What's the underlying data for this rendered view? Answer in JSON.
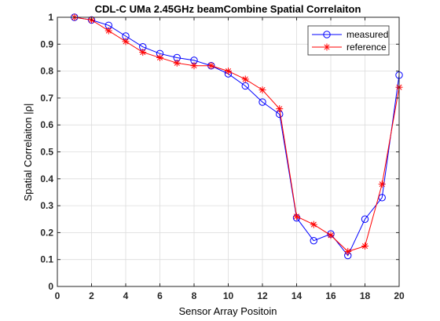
{
  "chart_data": {
    "type": "line",
    "title": "CDL-C UMa 2.45GHz beamCombine Spatial Correlaiton",
    "xlabel": "Sensor Array Positoin",
    "ylabel": "Spatial Correlaiton |ρ|",
    "xlim": [
      0,
      20
    ],
    "ylim": [
      0,
      1
    ],
    "xticks": [
      0,
      2,
      4,
      6,
      8,
      10,
      12,
      14,
      16,
      18,
      20
    ],
    "yticks": [
      0,
      0.1,
      0.2,
      0.3,
      0.4,
      0.5,
      0.6,
      0.7,
      0.8,
      0.9,
      1
    ],
    "grid": true,
    "legend_position": "top-right",
    "x": [
      1,
      2,
      3,
      4,
      5,
      6,
      7,
      8,
      9,
      10,
      11,
      12,
      13,
      14,
      15,
      16,
      17,
      18,
      19,
      20
    ],
    "series": [
      {
        "name": "measured",
        "color": "#0000ff",
        "marker": "circle",
        "values": [
          1.0,
          0.99,
          0.97,
          0.93,
          0.89,
          0.865,
          0.85,
          0.84,
          0.82,
          0.79,
          0.745,
          0.685,
          0.64,
          0.255,
          0.17,
          0.195,
          0.115,
          0.25,
          0.33,
          0.785
        ]
      },
      {
        "name": "reference",
        "color": "#ff0000",
        "marker": "star",
        "values": [
          1.0,
          0.99,
          0.95,
          0.91,
          0.87,
          0.85,
          0.83,
          0.82,
          0.82,
          0.8,
          0.77,
          0.73,
          0.66,
          0.26,
          0.23,
          0.19,
          0.13,
          0.15,
          0.38,
          0.74
        ]
      }
    ]
  }
}
